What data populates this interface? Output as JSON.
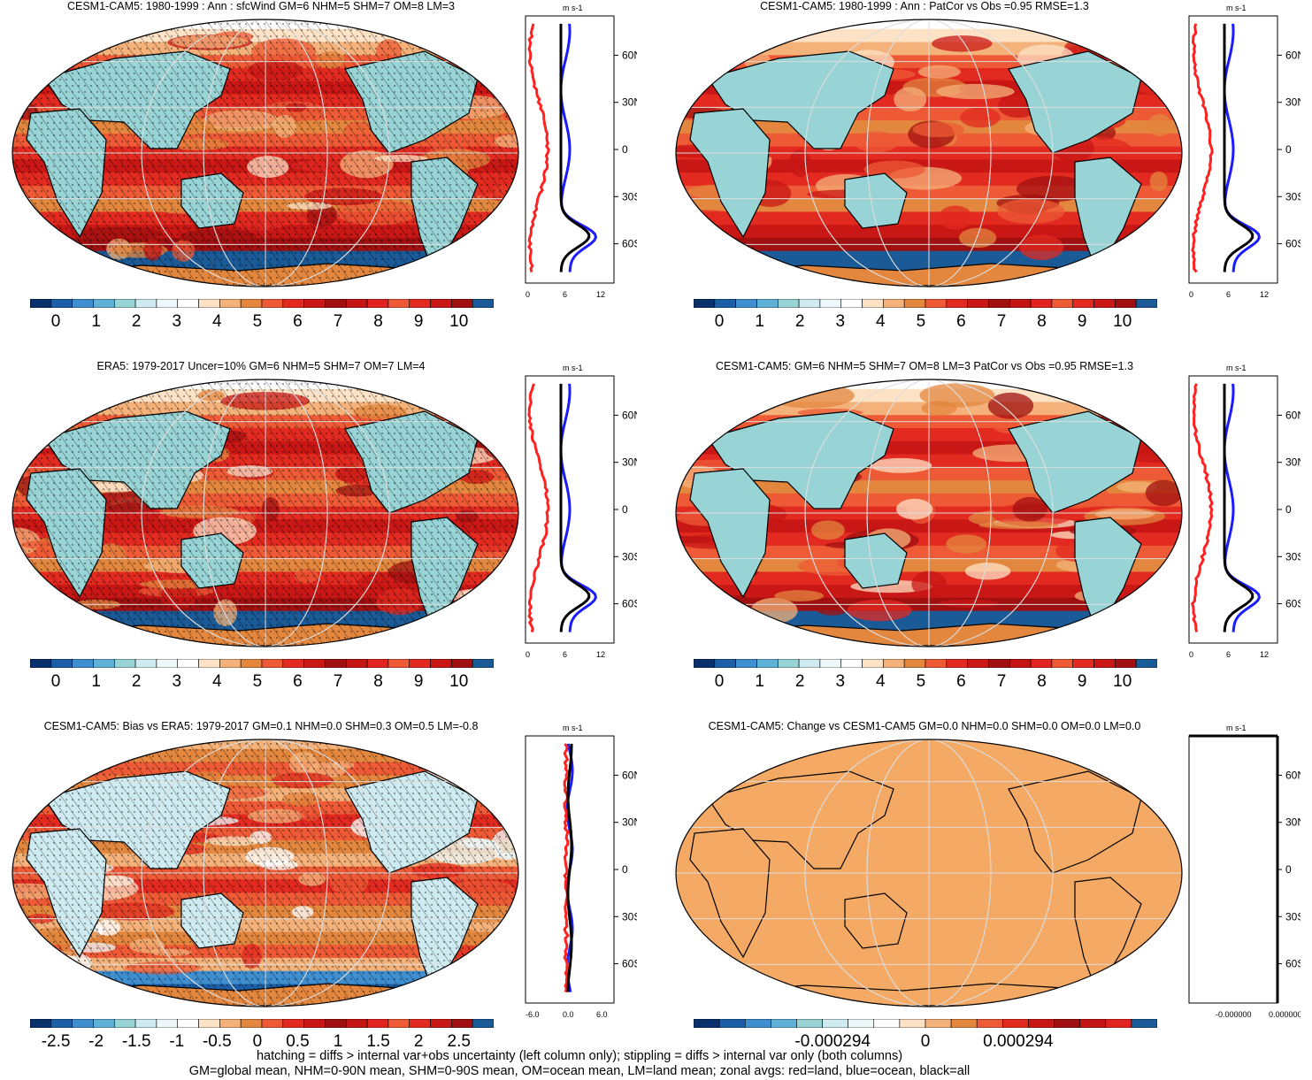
{
  "units": "m s-1",
  "lat_ticks": [
    "60N",
    "30N",
    "0",
    "30S",
    "60S"
  ],
  "colors": {
    "palette": [
      "#08306b",
      "#1c5fa6",
      "#3f8fd0",
      "#5fb1d8",
      "#98d3d5",
      "#cdebf0",
      "#eef8fa",
      "#ffffff",
      "#fde2c5",
      "#f4b27a",
      "#e3863e",
      "#ee5a35",
      "#e22a20",
      "#c81714",
      "#a01010",
      "#c41414",
      "#e3231f",
      "#1a5a96"
    ],
    "land": "#ff2020",
    "ocean": "#1b1bff",
    "all": "#000000",
    "flat": "#f4a964"
  },
  "panels": [
    {
      "title": "CESM1-CAM5: 1980-1999 : Ann : sfcWind GM=6 NHM=5 SHM=7 OM=8 LM=3",
      "cb_labels": [
        "0",
        "1",
        "2",
        "3",
        "4",
        "5",
        "6",
        "7",
        "8",
        "9",
        "10"
      ],
      "zonal_xticks": [
        "0",
        "6",
        "12"
      ],
      "hatch": true,
      "stipple": true,
      "mode": "mean"
    },
    {
      "title": "CESM1-CAM5: 1980-1999 : Ann : PatCor vs Obs =0.95 RMSE=1.3",
      "cb_labels": [
        "0",
        "1",
        "2",
        "3",
        "4",
        "5",
        "6",
        "7",
        "8",
        "9",
        "10"
      ],
      "zonal_xticks": [
        "0",
        "6",
        "12"
      ],
      "hatch": false,
      "stipple": false,
      "mode": "mean"
    },
    {
      "title": "ERA5: 1979-2017 Uncer=10% GM=6 NHM=5 SHM=7 OM=7 LM=4",
      "cb_labels": [
        "0",
        "1",
        "2",
        "3",
        "4",
        "5",
        "6",
        "7",
        "8",
        "9",
        "10"
      ],
      "zonal_xticks": [
        "0",
        "6",
        "12"
      ],
      "hatch": true,
      "stipple": true,
      "mode": "mean"
    },
    {
      "title": "CESM1-CAM5: GM=6 NHM=5 SHM=7 OM=8 LM=3 PatCor vs Obs =0.95 RMSE=1.3",
      "cb_labels": [
        "0",
        "1",
        "2",
        "3",
        "4",
        "5",
        "6",
        "7",
        "8",
        "9",
        "10"
      ],
      "zonal_xticks": [
        "0",
        "6",
        "12"
      ],
      "hatch": false,
      "stipple": false,
      "mode": "mean"
    },
    {
      "title": "CESM1-CAM5: Bias vs ERA5: 1979-2017 GM=0.1 NHM=0.0 SHM=0.3 OM=0.5 LM=-0.8",
      "cb_labels": [
        "-2.5",
        "-2",
        "-1.5",
        "-1",
        "-0.5",
        "0",
        "0.5",
        "1",
        "1.5",
        "2",
        "2.5"
      ],
      "zonal_xticks": [
        "-6.0",
        "0.0",
        "6.0"
      ],
      "hatch": true,
      "stipple": true,
      "mode": "bias"
    },
    {
      "title": "CESM1-CAM5: Change vs CESM1-CAM5 GM=0.0 NHM=0.0 SHM=0.0 OM=0.0 LM=0.0",
      "cb_labels": [
        "-0.000294",
        "0",
        "0.000294"
      ],
      "zonal_xticks": [
        "-0.000000",
        "0.000000"
      ],
      "hatch": false,
      "stipple": false,
      "mode": "flat"
    }
  ],
  "footer": [
    "hatching = diffs > internal var+obs uncertainty (left column only); stippling = diffs > internal var only (both columns)",
    "GM=global mean, NHM=0-90N mean, SHM=0-90S mean, OM=ocean mean, LM=land mean; zonal avgs: red=land, blue=ocean, black=all"
  ],
  "chart_data": [
    {
      "type": "heatmap",
      "title": "CESM1-CAM5: 1980-1999 : Ann : sfcWind GM=6 NHM=5 SHM=7 OM=8 LM=3",
      "colorbar": [
        0,
        1,
        2,
        3,
        4,
        5,
        6,
        7,
        8,
        9,
        10
      ],
      "units": "m s-1",
      "zonal_mean": {
        "lat": [
          -75,
          -60,
          -50,
          -30,
          0,
          30,
          60,
          75
        ],
        "all": [
          4,
          11,
          8,
          6,
          5,
          6,
          8,
          5
        ],
        "land": [
          1,
          3,
          3,
          3,
          2,
          3,
          4,
          4
        ],
        "ocean": [
          4,
          11,
          9,
          7,
          6,
          7,
          9,
          5
        ]
      }
    },
    {
      "type": "heatmap",
      "title": "CESM1-CAM5: 1980-1999 : Ann : PatCor vs Obs =0.95 RMSE=1.3",
      "colorbar": [
        0,
        1,
        2,
        3,
        4,
        5,
        6,
        7,
        8,
        9,
        10
      ],
      "units": "m s-1"
    },
    {
      "type": "heatmap",
      "title": "ERA5: 1979-2017 Uncer=10% GM=6 NHM=5 SHM=7 OM=7 LM=4",
      "colorbar": [
        0,
        1,
        2,
        3,
        4,
        5,
        6,
        7,
        8,
        9,
        10
      ],
      "units": "m s-1",
      "zonal_mean": {
        "lat": [
          -75,
          -60,
          -50,
          -30,
          0,
          30,
          60,
          75
        ],
        "all": [
          4,
          10,
          8,
          6,
          5,
          6,
          7,
          5
        ],
        "land": [
          2,
          3,
          4,
          3,
          2,
          3,
          4,
          4
        ],
        "ocean": [
          4,
          10,
          9,
          7,
          6,
          7,
          8,
          5
        ]
      }
    },
    {
      "type": "heatmap",
      "title": "CESM1-CAM5: GM=6 NHM=5 SHM=7 OM=8 LM=3 PatCor vs Obs =0.95 RMSE=1.3",
      "colorbar": [
        0,
        1,
        2,
        3,
        4,
        5,
        6,
        7,
        8,
        9,
        10
      ],
      "units": "m s-1"
    },
    {
      "type": "heatmap",
      "title": "CESM1-CAM5: Bias vs ERA5: 1979-2017 GM=0.1 NHM=0.0 SHM=0.3 OM=0.5 LM=-0.8",
      "colorbar": [
        -2.5,
        -2,
        -1.5,
        -1,
        -0.5,
        0,
        0.5,
        1,
        1.5,
        2,
        2.5
      ],
      "units": "m s-1"
    },
    {
      "type": "heatmap",
      "title": "CESM1-CAM5: Change vs CESM1-CAM5 GM=0.0 NHM=0.0 SHM=0.0 OM=0.0 LM=0.0",
      "colorbar": [
        -0.000294,
        0,
        0.000294
      ],
      "units": "m s-1"
    }
  ]
}
